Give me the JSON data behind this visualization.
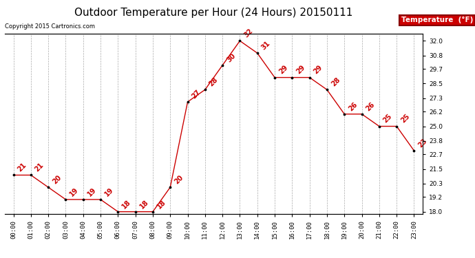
{
  "title": "Outdoor Temperature per Hour (24 Hours) 20150111",
  "copyright": "Copyright 2015 Cartronics.com",
  "legend_label": "Temperature  (°F)",
  "hours": [
    0,
    1,
    2,
    3,
    4,
    5,
    6,
    7,
    8,
    9,
    10,
    11,
    12,
    13,
    14,
    15,
    16,
    17,
    18,
    19,
    20,
    21,
    22,
    23
  ],
  "temps": [
    21,
    21,
    20,
    19,
    19,
    19,
    18,
    18,
    18,
    20,
    27,
    28,
    30,
    32,
    31,
    29,
    29,
    29,
    28,
    26,
    26,
    25,
    25,
    23
  ],
  "ylim": [
    17.8,
    32.6
  ],
  "yticks": [
    18.0,
    19.2,
    20.3,
    21.5,
    22.7,
    23.8,
    25.0,
    26.2,
    27.3,
    28.5,
    29.7,
    30.8,
    32.0
  ],
  "line_color": "#cc0000",
  "marker_color": "#000000",
  "label_color": "#cc0000",
  "background_color": "#ffffff",
  "grid_color": "#aaaaaa",
  "title_fontsize": 11,
  "copyright_fontsize": 6,
  "tick_fontsize": 6.5,
  "annot_fontsize": 7
}
